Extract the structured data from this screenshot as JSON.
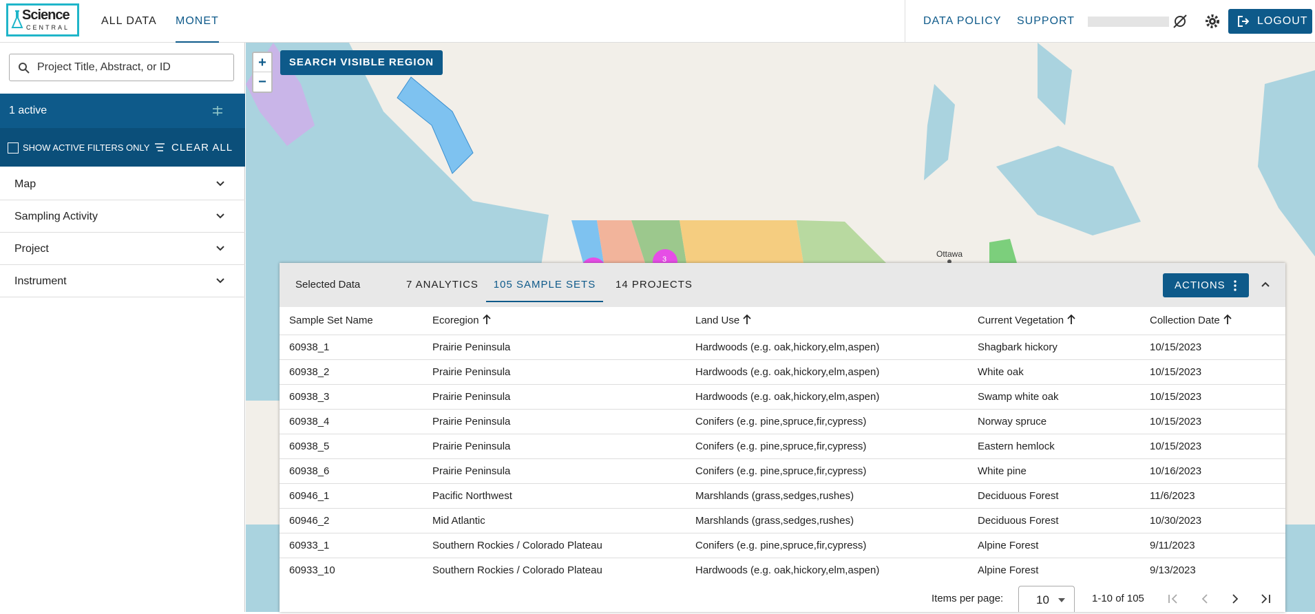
{
  "header": {
    "logo_top": "Science",
    "logo_bottom": "CENTRAL",
    "nav": [
      "ALL DATA",
      "MONET"
    ],
    "right_nav": [
      "DATA POLICY",
      "SUPPORT"
    ],
    "logout": "LOGOUT"
  },
  "sidebar": {
    "search_placeholder": "Project Title, Abstract, or ID",
    "active_filters": "1 active",
    "show_active_only": "SHOW ACTIVE FILTERS ONLY",
    "clear_all": "CLEAR ALL",
    "sections": [
      "Map",
      "Sampling Activity",
      "Project",
      "Instrument"
    ]
  },
  "map": {
    "zoom_in": "+",
    "zoom_out": "−",
    "search_button": "SEARCH VISIBLE REGION",
    "city_label": "Ottawa",
    "cluster_count": "3"
  },
  "panel": {
    "title": "Selected Data",
    "tabs": [
      "7 ANALYTICS",
      "105 SAMPLE SETS",
      "14 PROJECTS"
    ],
    "actions": "ACTIONS"
  },
  "table": {
    "columns": [
      "Sample Set Name",
      "Ecoregion",
      "Land Use",
      "Current Vegetation",
      "Collection Date"
    ],
    "rows": [
      [
        "60938_1",
        "Prairie Peninsula",
        "Hardwoods (e.g. oak,hickory,elm,aspen)",
        "Shagbark hickory",
        "10/15/2023"
      ],
      [
        "60938_2",
        "Prairie Peninsula",
        "Hardwoods (e.g. oak,hickory,elm,aspen)",
        "White oak",
        "10/15/2023"
      ],
      [
        "60938_3",
        "Prairie Peninsula",
        "Hardwoods (e.g. oak,hickory,elm,aspen)",
        "Swamp white oak",
        "10/15/2023"
      ],
      [
        "60938_4",
        "Prairie Peninsula",
        "Conifers (e.g. pine,spruce,fir,cypress)",
        "Norway spruce",
        "10/15/2023"
      ],
      [
        "60938_5",
        "Prairie Peninsula",
        "Conifers (e.g. pine,spruce,fir,cypress)",
        "Eastern hemlock",
        "10/15/2023"
      ],
      [
        "60938_6",
        "Prairie Peninsula",
        "Conifers (e.g. pine,spruce,fir,cypress)",
        "White pine",
        "10/16/2023"
      ],
      [
        "60946_1",
        "Pacific Northwest",
        "Marshlands (grass,sedges,rushes)",
        "Deciduous Forest",
        "11/6/2023"
      ],
      [
        "60946_2",
        "Mid Atlantic",
        "Marshlands (grass,sedges,rushes)",
        "Deciduous Forest",
        "10/30/2023"
      ],
      [
        "60933_1",
        "Southern Rockies / Colorado Plateau",
        "Conifers (e.g. pine,spruce,fir,cypress)",
        "Alpine Forest",
        "9/11/2023"
      ],
      [
        "60933_10",
        "Southern Rockies / Colorado Plateau",
        "Hardwoods (e.g. oak,hickory,elm,aspen)",
        "Alpine Forest",
        "9/13/2023"
      ]
    ]
  },
  "pagination": {
    "items_per_page_label": "Items per page:",
    "items_per_page": "10",
    "range": "1-10 of 105"
  }
}
